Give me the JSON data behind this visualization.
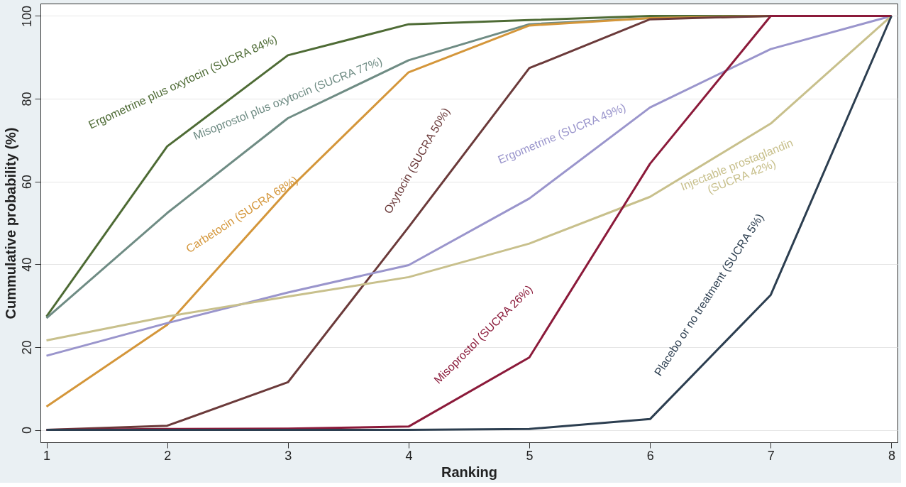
{
  "chart_data": {
    "type": "line",
    "xlabel": "Ranking",
    "ylabel": "Cummulative probability (%)",
    "x": [
      1,
      2,
      3,
      4,
      5,
      6,
      7,
      8
    ],
    "xlim": [
      0.95,
      8.05
    ],
    "xticks": [
      1,
      2,
      3,
      4,
      5,
      6,
      7,
      8
    ],
    "ylim": [
      -3,
      103
    ],
    "yticks": [
      0,
      20,
      40,
      60,
      80,
      100
    ],
    "grid": "y",
    "legend": false,
    "marker": "none",
    "line_style": "solid",
    "series": [
      {
        "color": "#4e6b35",
        "values": [
          27.4,
          68.5,
          90.5,
          98,
          99,
          100,
          100,
          100
        ]
      },
      {
        "color": "#6f8c84",
        "values": [
          27,
          52.4,
          75.3,
          89.3,
          98,
          99.5,
          100,
          100
        ]
      },
      {
        "color": "#d4963a",
        "values": [
          5.6,
          25.4,
          57.9,
          86.4,
          97.7,
          99.5,
          100,
          100
        ]
      },
      {
        "color": "#6b3a3a",
        "values": [
          0,
          1,
          11.5,
          49,
          87.4,
          99.2,
          100,
          100
        ]
      },
      {
        "color": "#9a95cc",
        "values": [
          17.9,
          25.8,
          33.2,
          39.8,
          55.9,
          77.9,
          92,
          100
        ]
      },
      {
        "color": "#c8c08c",
        "values": [
          21.6,
          27.4,
          32.2,
          36.9,
          45,
          56.3,
          74,
          100
        ]
      },
      {
        "color": "#8b1a3a",
        "values": [
          0,
          0.2,
          0.3,
          0.8,
          17.5,
          64.3,
          100,
          100
        ]
      },
      {
        "color": "#2c3e50",
        "values": [
          0,
          0,
          0,
          0,
          0.2,
          2.6,
          32.6,
          100
        ]
      }
    ],
    "annotations": [
      "Ergometrine plus oxytocin (SUCRA 84%)",
      "Misoprostol plus oxytocin (SUCRA 77%)",
      "Carbetocin (SUCRA 68%)",
      "Oxytocin (SUCRA 50%)",
      "Ergometrine (SUCRA 49%)",
      "Injectable prostaglandin\n(SUCRA 42%)",
      "Misoprostol (SUCRA 26%)",
      "Placebo or no treatment (SUCRA 5%)"
    ]
  }
}
